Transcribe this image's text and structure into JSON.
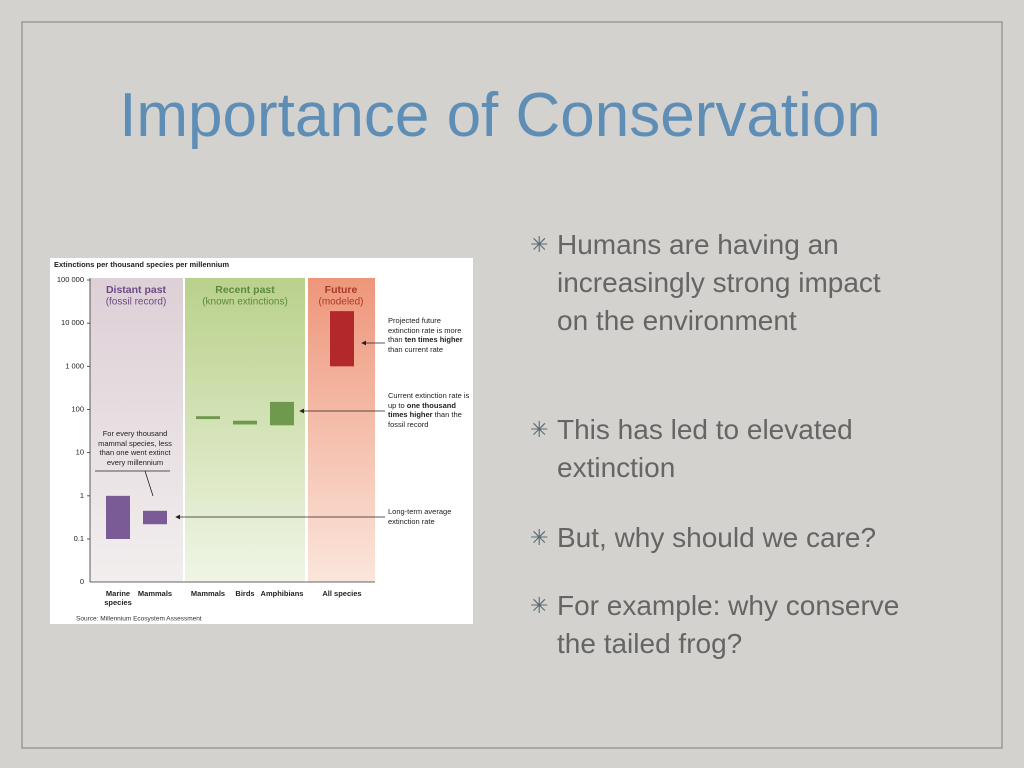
{
  "slide": {
    "title": "Importance of Conservation",
    "bullets": [
      "Humans are having an increasingly strong impact on the environment",
      "This has led to elevated extinction",
      "But, why should we care?",
      "For example: why conserve the tailed frog?"
    ]
  },
  "figure": {
    "chart_data": {
      "type": "floating-bar",
      "title": "Extinctions per thousand species per millennium",
      "log_scale": true,
      "ylim": [
        0.1,
        100000
      ],
      "yticks": [
        {
          "value": 100000,
          "label": "100 000"
        },
        {
          "value": 10000,
          "label": "10 000"
        },
        {
          "value": 1000,
          "label": "1 000"
        },
        100,
        10,
        1,
        0.1
      ],
      "y_floor_label": "0",
      "periods": [
        {
          "name": "Distant past",
          "subtitle": "(fossil record)",
          "color": "#6b4b85"
        },
        {
          "name": "Recent past",
          "subtitle": "(known extinctions)",
          "color": "#5b8a3b"
        },
        {
          "name": "Future",
          "subtitle": "(modeled)",
          "color": "#a63a2a"
        }
      ],
      "categories": [
        "Marine species",
        "Mammals",
        "Mammals",
        "Birds",
        "Amphibians",
        "All species"
      ],
      "low": [
        0.1,
        0.22,
        60,
        45,
        43,
        1000
      ],
      "high": [
        1,
        0.45,
        70,
        55,
        150,
        19000
      ],
      "colors": [
        "#7b5b96",
        "#7b5b96",
        "#6f9a4d",
        "#6f9a4d",
        "#6f9a4d",
        "#b3282a"
      ],
      "annotations": [
        {
          "parts": [
            "Projected future extinction rate is more than ",
            "ten times higher",
            " than current rate"
          ]
        },
        {
          "parts": [
            "Current extinction rate is up to ",
            "one thousand times higher",
            " than the fossil record"
          ]
        },
        {
          "parts": [
            "Long-term average extinction rate"
          ]
        },
        {
          "parts": [
            "For every thousand mammal species, less than one went extinct every millennium"
          ]
        }
      ],
      "source": "Source: Millennium Ecosystem Assessment"
    }
  }
}
